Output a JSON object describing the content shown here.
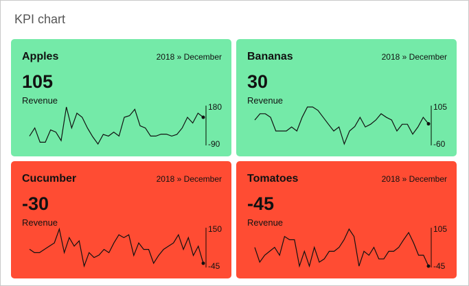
{
  "title": "KPI chart",
  "colors": {
    "positive": "#74eaa8",
    "negative": "#ff4c33"
  },
  "cards": [
    {
      "name": "Apples",
      "period": "2018 » December",
      "value": "105",
      "measure": "Revenue",
      "status": "positive",
      "axis_max": "180",
      "axis_min": "-90",
      "trend": [
        -32,
        27,
        -77,
        -77,
        13,
        -3,
        -65,
        180,
        27,
        135,
        105,
        27,
        -37,
        -90,
        -20,
        -32,
        -3,
        -32,
        105,
        117,
        163,
        43,
        27,
        -32,
        -32,
        -18,
        -18,
        -32,
        -20,
        27,
        105,
        63,
        135,
        105
      ]
    },
    {
      "name": "Bananas",
      "period": "2018 » December",
      "value": "30",
      "measure": "Revenue",
      "status": "positive",
      "axis_max": "105",
      "axis_min": "-60",
      "trend": [
        47,
        75,
        75,
        59,
        -2,
        -2,
        -2,
        16,
        -2,
        59,
        105,
        105,
        90,
        59,
        28,
        -2,
        16,
        -60,
        -2,
        18,
        59,
        16,
        28,
        47,
        75,
        59,
        47,
        -2,
        28,
        28,
        -16,
        16,
        59,
        30
      ]
    },
    {
      "name": "Cucumber",
      "period": "2018 » December",
      "value": "-30",
      "measure": "Revenue",
      "status": "negative",
      "axis_max": "150",
      "axis_min": "-45",
      "trend": [
        44,
        26,
        26,
        43,
        60,
        77,
        150,
        26,
        105,
        60,
        88,
        -45,
        26,
        0,
        13,
        43,
        26,
        77,
        120,
        105,
        120,
        11,
        77,
        43,
        43,
        -30,
        11,
        43,
        60,
        77,
        120,
        43,
        105,
        11,
        60,
        -30
      ]
    },
    {
      "name": "Tomatoes",
      "period": "2018 » December",
      "value": "-45",
      "measure": "Revenue",
      "status": "negative",
      "axis_max": "105",
      "axis_min": "-45",
      "trend": [
        31,
        -29,
        -1,
        15,
        31,
        -1,
        75,
        62,
        62,
        -45,
        15,
        -45,
        31,
        -29,
        -16,
        15,
        15,
        31,
        62,
        105,
        75,
        -45,
        15,
        -1,
        31,
        -16,
        -16,
        15,
        15,
        31,
        62,
        91,
        49,
        -1,
        -1,
        -45
      ]
    }
  ]
}
